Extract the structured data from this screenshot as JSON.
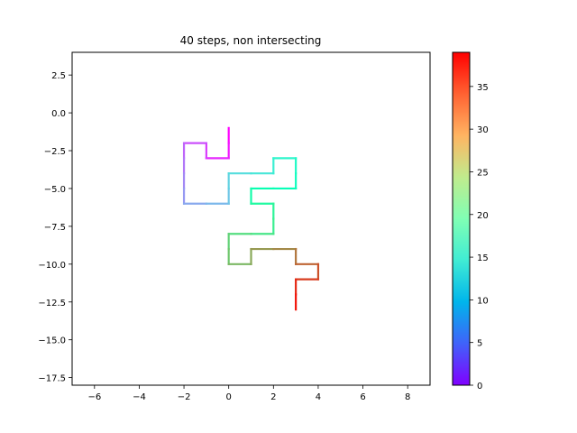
{
  "chart_data": {
    "type": "line",
    "title": "40 steps, non intersecting",
    "xlabel": "",
    "ylabel": "",
    "xlim": [
      -7,
      9
    ],
    "ylim": [
      -18,
      4
    ],
    "xticks": [
      "−6",
      "−4",
      "−2",
      "0",
      "2",
      "4",
      "6",
      "8"
    ],
    "yticks": [
      "2.5",
      "0.0",
      "−2.5",
      "−5.0",
      "−7.5",
      "−10.0",
      "−12.5",
      "−15.0",
      "−17.5"
    ],
    "colormap": "rainbow",
    "colorbar": {
      "range": [
        0,
        39
      ],
      "ticks": [
        "0",
        "5",
        "10",
        "15",
        "20",
        "25",
        "30",
        "35"
      ]
    },
    "grid": false,
    "series": [
      {
        "points": [
          [
            0,
            -1
          ],
          [
            0,
            -2
          ],
          [
            0,
            -3
          ],
          [
            -1,
            -3
          ],
          [
            -1,
            -2
          ],
          [
            -2,
            -2
          ],
          [
            -2,
            -3
          ],
          [
            -2,
            -4
          ],
          [
            -2,
            -5
          ],
          [
            -2,
            -6
          ],
          [
            -1,
            -6
          ],
          [
            0,
            -6
          ],
          [
            0,
            -5
          ],
          [
            0,
            -4
          ],
          [
            1,
            -4
          ],
          [
            2,
            -4
          ],
          [
            2,
            -3
          ],
          [
            3,
            -3
          ],
          [
            3,
            -4
          ],
          [
            3,
            -5
          ],
          [
            2,
            -5
          ],
          [
            1,
            -5
          ],
          [
            1,
            -6
          ],
          [
            2,
            -6
          ],
          [
            2,
            -7
          ],
          [
            2,
            -8
          ],
          [
            1,
            -8
          ],
          [
            0,
            -8
          ],
          [
            0,
            -9
          ],
          [
            0,
            -10
          ],
          [
            1,
            -10
          ],
          [
            1,
            -9
          ],
          [
            2,
            -9
          ],
          [
            3,
            -9
          ],
          [
            3,
            -10
          ],
          [
            4,
            -10
          ],
          [
            4,
            -11
          ],
          [
            3,
            -11
          ],
          [
            3,
            -12
          ],
          [
            3,
            -13
          ]
        ]
      }
    ]
  }
}
